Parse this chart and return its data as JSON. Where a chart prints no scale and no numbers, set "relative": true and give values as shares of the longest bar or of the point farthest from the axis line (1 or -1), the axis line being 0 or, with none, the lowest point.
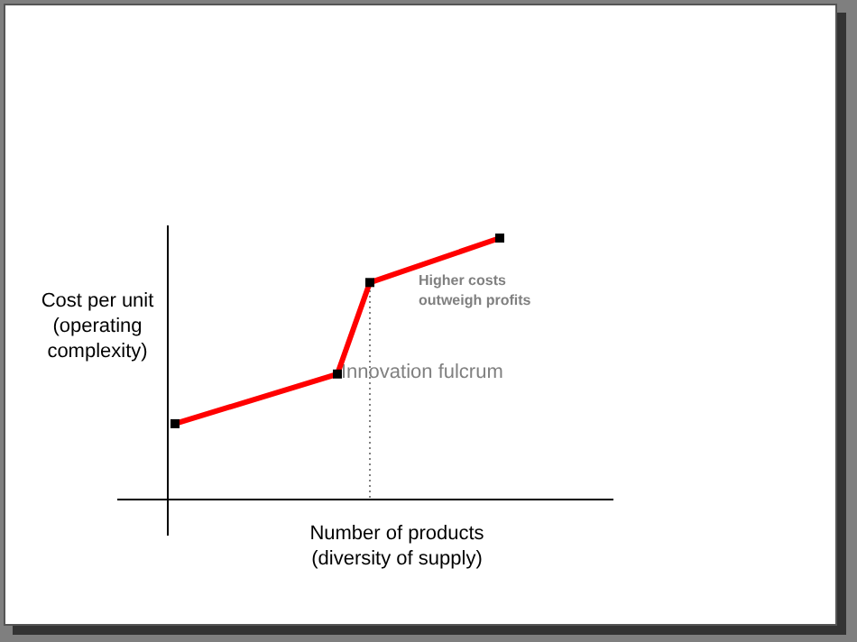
{
  "chart_data": {
    "type": "line",
    "relative": true,
    "xlabel": "Number of products (diversity of supply)",
    "ylabel": "Cost per unit (operating complexity)",
    "categories": [
      null,
      null,
      null,
      null,
      null,
      null,
      null,
      null,
      null,
      null,
      null
    ],
    "series": [
      {
        "color": "#ff0000",
        "values": [
          0.29,
          null,
          null,
          null,
          null,
          0.48,
          0.83,
          null,
          null,
          null,
          1
        ],
        "marker": "square",
        "line_style": "solid"
      }
    ],
    "annotations": [
      "Innovation fulcrum",
      "Higher costs outweigh profits"
    ]
  }
}
